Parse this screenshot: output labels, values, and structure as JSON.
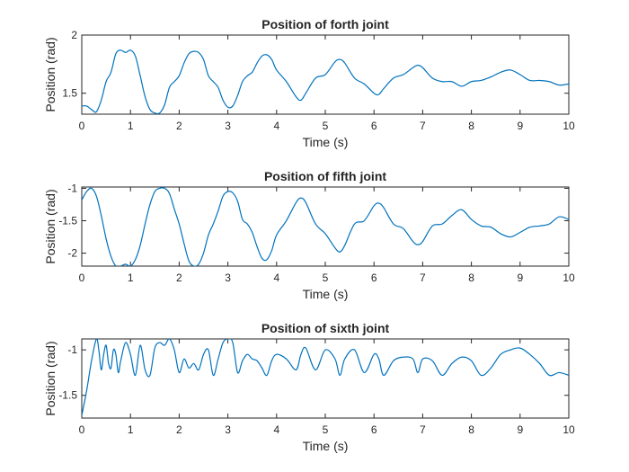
{
  "chart_data": [
    {
      "type": "line",
      "title": "Position of forth joint",
      "xlabel": "Time (s)",
      "ylabel": "Position (rad)",
      "xlim": [
        0,
        10
      ],
      "ylim": [
        1.32,
        2.0
      ],
      "xticks": [
        0,
        1,
        2,
        3,
        4,
        5,
        6,
        7,
        8,
        9,
        10
      ],
      "xtick_labels": [
        "0",
        "1",
        "2",
        "3",
        "4",
        "5",
        "6",
        "7",
        "8",
        "9",
        "10"
      ],
      "yticks": [
        1.5,
        2.0
      ],
      "ytick_labels": [
        "1.5",
        "2"
      ],
      "grid": false,
      "color": "#0072bd",
      "series": [
        {
          "x": [
            0,
            0.1,
            0.2,
            0.3,
            0.4,
            0.5,
            0.6,
            0.7,
            0.8,
            0.9,
            1.0,
            1.1,
            1.2,
            1.3,
            1.4,
            1.5,
            1.6,
            1.7,
            1.8,
            1.9,
            2.0,
            2.1,
            2.2,
            2.3,
            2.4,
            2.5,
            2.6,
            2.7,
            2.8,
            2.9,
            3.0,
            3.1,
            3.2,
            3.3,
            3.4,
            3.5,
            3.6,
            3.7,
            3.8,
            3.9,
            4.0,
            4.2,
            4.4,
            4.5,
            4.6,
            4.8,
            5.0,
            5.2,
            5.3,
            5.4,
            5.6,
            5.8,
            6.0,
            6.1,
            6.2,
            6.4,
            6.6,
            6.8,
            6.9,
            7.0,
            7.2,
            7.4,
            7.6,
            7.8,
            8.0,
            8.2,
            8.4,
            8.6,
            8.8,
            9.0,
            9.2,
            9.4,
            9.6,
            9.8,
            10.0
          ],
          "y": [
            1.39,
            1.39,
            1.36,
            1.34,
            1.44,
            1.6,
            1.68,
            1.84,
            1.87,
            1.85,
            1.87,
            1.82,
            1.65,
            1.47,
            1.36,
            1.33,
            1.33,
            1.4,
            1.55,
            1.6,
            1.65,
            1.76,
            1.84,
            1.86,
            1.85,
            1.79,
            1.65,
            1.6,
            1.55,
            1.44,
            1.38,
            1.39,
            1.48,
            1.6,
            1.65,
            1.68,
            1.76,
            1.82,
            1.83,
            1.79,
            1.7,
            1.6,
            1.47,
            1.44,
            1.5,
            1.63,
            1.66,
            1.77,
            1.79,
            1.76,
            1.63,
            1.58,
            1.5,
            1.49,
            1.54,
            1.63,
            1.66,
            1.72,
            1.74,
            1.72,
            1.63,
            1.6,
            1.6,
            1.56,
            1.6,
            1.61,
            1.64,
            1.68,
            1.7,
            1.66,
            1.61,
            1.61,
            1.6,
            1.57,
            1.58
          ]
        }
      ]
    },
    {
      "type": "line",
      "title": "Position of fifth joint",
      "xlabel": "Time (s)",
      "ylabel": "Position (rad)",
      "xlim": [
        0,
        10
      ],
      "ylim": [
        -2.2,
        -0.98
      ],
      "xticks": [
        0,
        1,
        2,
        3,
        4,
        5,
        6,
        7,
        8,
        9,
        10
      ],
      "xtick_labels": [
        "0",
        "1",
        "2",
        "3",
        "4",
        "5",
        "6",
        "7",
        "8",
        "9",
        "10"
      ],
      "yticks": [
        -2,
        -1.5,
        -1
      ],
      "ytick_labels": [
        "-2",
        "-1.5",
        "-1"
      ],
      "grid": false,
      "color": "#0072bd",
      "series": [
        {
          "x": [
            0,
            0.1,
            0.2,
            0.3,
            0.4,
            0.5,
            0.6,
            0.7,
            0.8,
            0.9,
            1.0,
            1.1,
            1.2,
            1.3,
            1.4,
            1.5,
            1.6,
            1.7,
            1.8,
            1.9,
            2.0,
            2.1,
            2.2,
            2.3,
            2.4,
            2.5,
            2.6,
            2.7,
            2.8,
            2.9,
            3.0,
            3.1,
            3.2,
            3.3,
            3.4,
            3.5,
            3.6,
            3.7,
            3.8,
            3.9,
            4.0,
            4.2,
            4.4,
            4.5,
            4.6,
            4.8,
            5.0,
            5.2,
            5.3,
            5.4,
            5.6,
            5.8,
            6.0,
            6.1,
            6.2,
            6.4,
            6.6,
            6.8,
            6.9,
            7.0,
            7.2,
            7.4,
            7.6,
            7.8,
            8.0,
            8.2,
            8.4,
            8.6,
            8.8,
            9.0,
            9.2,
            9.4,
            9.6,
            9.8,
            10.0
          ],
          "y": [
            -1.18,
            -1.05,
            -1.0,
            -1.12,
            -1.42,
            -1.78,
            -2.05,
            -2.2,
            -2.2,
            -2.17,
            -2.2,
            -2.1,
            -1.88,
            -1.55,
            -1.25,
            -1.05,
            -1.0,
            -1.0,
            -1.08,
            -1.32,
            -1.55,
            -1.85,
            -2.12,
            -2.2,
            -2.17,
            -2.0,
            -1.72,
            -1.55,
            -1.35,
            -1.12,
            -1.05,
            -1.07,
            -1.2,
            -1.48,
            -1.55,
            -1.68,
            -1.9,
            -2.08,
            -2.1,
            -1.96,
            -1.72,
            -1.5,
            -1.22,
            -1.15,
            -1.22,
            -1.55,
            -1.7,
            -1.92,
            -1.98,
            -1.88,
            -1.55,
            -1.5,
            -1.27,
            -1.23,
            -1.3,
            -1.55,
            -1.62,
            -1.82,
            -1.87,
            -1.82,
            -1.58,
            -1.55,
            -1.42,
            -1.33,
            -1.48,
            -1.58,
            -1.6,
            -1.7,
            -1.75,
            -1.68,
            -1.6,
            -1.58,
            -1.55,
            -1.44,
            -1.48
          ]
        }
      ]
    },
    {
      "type": "line",
      "title": "Position of sixth joint",
      "xlabel": "Time (s)",
      "ylabel": "Position (rad)",
      "xlim": [
        0,
        10
      ],
      "ylim": [
        -1.75,
        -0.88
      ],
      "xticks": [
        0,
        1,
        2,
        3,
        4,
        5,
        6,
        7,
        8,
        9,
        10
      ],
      "xtick_labels": [
        "0",
        "1",
        "2",
        "3",
        "4",
        "5",
        "6",
        "7",
        "8",
        "9",
        "10"
      ],
      "yticks": [
        -1.5,
        -1
      ],
      "ytick_labels": [
        "-1.5",
        "-1"
      ],
      "grid": false,
      "color": "#0072bd",
      "series": [
        {
          "x": [
            0,
            0.1,
            0.2,
            0.3,
            0.35,
            0.4,
            0.45,
            0.5,
            0.55,
            0.6,
            0.65,
            0.7,
            0.75,
            0.8,
            0.9,
            1.0,
            1.1,
            1.2,
            1.3,
            1.4,
            1.5,
            1.6,
            1.7,
            1.8,
            1.9,
            2.0,
            2.1,
            2.2,
            2.3,
            2.4,
            2.5,
            2.6,
            2.7,
            2.8,
            2.9,
            3.0,
            3.1,
            3.2,
            3.3,
            3.4,
            3.5,
            3.6,
            3.7,
            3.8,
            3.9,
            4.0,
            4.2,
            4.4,
            4.5,
            4.6,
            4.8,
            5.0,
            5.2,
            5.3,
            5.4,
            5.6,
            5.8,
            6.0,
            6.1,
            6.2,
            6.4,
            6.6,
            6.8,
            6.9,
            7.0,
            7.2,
            7.4,
            7.6,
            7.8,
            8.0,
            8.2,
            8.4,
            8.6,
            8.8,
            9.0,
            9.2,
            9.4,
            9.6,
            9.8,
            10.0
          ],
          "y": [
            -1.72,
            -1.45,
            -1.12,
            -0.88,
            -1.0,
            -1.22,
            -1.05,
            -0.95,
            -1.15,
            -1.2,
            -1.0,
            -1.05,
            -1.25,
            -1.12,
            -0.92,
            -1.05,
            -1.28,
            -0.95,
            -1.22,
            -1.28,
            -0.98,
            -0.92,
            -0.95,
            -0.88,
            -1.0,
            -1.25,
            -1.1,
            -1.2,
            -1.15,
            -1.22,
            -1.05,
            -1.0,
            -1.28,
            -1.1,
            -0.92,
            -0.88,
            -0.92,
            -1.25,
            -1.12,
            -1.05,
            -1.1,
            -1.12,
            -1.2,
            -1.28,
            -1.12,
            -1.05,
            -1.1,
            -1.22,
            -1.05,
            -0.98,
            -1.22,
            -1.0,
            -1.1,
            -1.28,
            -1.1,
            -1.0,
            -1.25,
            -1.05,
            -1.1,
            -1.28,
            -1.12,
            -1.08,
            -1.1,
            -1.25,
            -1.1,
            -1.12,
            -1.28,
            -1.15,
            -1.08,
            -1.12,
            -1.28,
            -1.2,
            -1.05,
            -1.0,
            -0.98,
            -1.05,
            -1.15,
            -1.28,
            -1.25,
            -1.28
          ]
        }
      ]
    }
  ]
}
